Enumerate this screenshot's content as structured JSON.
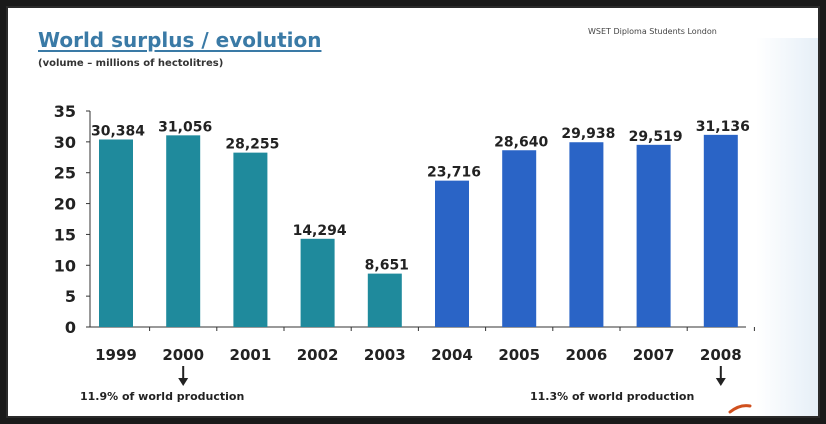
{
  "title": "World surplus / evolution",
  "subtitle": "(volume – millions of hectolitres)",
  "credit": "WSET Diploma Students London",
  "notes": {
    "left": "11.9% of world production",
    "right": "11.3% of world production"
  },
  "colors": {
    "teal": "#1f8a9c",
    "blue": "#2a64c6",
    "title": "#3a7aa6"
  },
  "chart_data": {
    "type": "bar",
    "title": "World surplus / evolution",
    "subtitle": "(volume – millions of hectolitres)",
    "categories": [
      "1999",
      "2000",
      "2001",
      "2002",
      "2003",
      "2004",
      "2005",
      "2006",
      "2007",
      "2008"
    ],
    "values": [
      30.384,
      31.056,
      28.255,
      14.294,
      8.651,
      23.716,
      28.64,
      29.938,
      29.519,
      31.136
    ],
    "value_labels": [
      "30,384",
      "31,056",
      "28,255",
      "14,294",
      "8,651",
      "23,716",
      "28,640",
      "29,938",
      "29,519",
      "31,136"
    ],
    "bar_colors": [
      "#1f8a9c",
      "#1f8a9c",
      "#1f8a9c",
      "#1f8a9c",
      "#1f8a9c",
      "#2a64c6",
      "#2a64c6",
      "#2a64c6",
      "#2a64c6",
      "#2a64c6"
    ],
    "yticks": [
      "0",
      "5",
      "10",
      "15",
      "20",
      "25",
      "30",
      "35"
    ],
    "ylim": [
      0,
      35
    ],
    "xlabel": "",
    "ylabel": "",
    "grid": false,
    "arrows_under": [
      "2000",
      "2008"
    ]
  }
}
